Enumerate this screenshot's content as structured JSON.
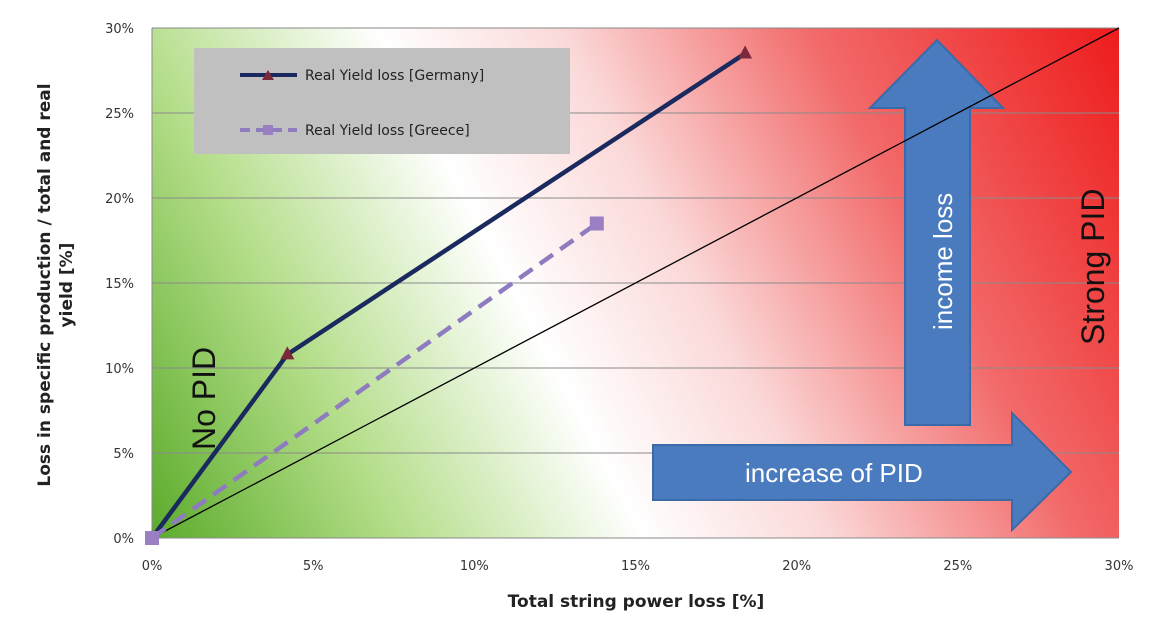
{
  "chart_data": {
    "type": "line",
    "xlabel": "Total string power loss [%]",
    "ylabel": "Loss in specific production / total and real yield [%]",
    "ylabel_lines": [
      "Loss in specific production / total and real",
      "yield [%]"
    ],
    "xlim": [
      0,
      30
    ],
    "ylim": [
      0,
      30
    ],
    "x_ticks": [
      0,
      5,
      10,
      15,
      20,
      25,
      30
    ],
    "y_ticks": [
      0,
      5,
      10,
      15,
      20,
      25,
      30
    ],
    "x_tick_labels": [
      "0%",
      "5%",
      "10%",
      "15%",
      "20%",
      "25%",
      "30%"
    ],
    "y_tick_labels": [
      "0%",
      "5%",
      "10%",
      "15%",
      "20%",
      "25%",
      "30%"
    ],
    "grid": "horizontal",
    "legend_position": "top-left",
    "series": [
      {
        "name": "Real Yield loss [Germany]",
        "style": "solid",
        "marker": "triangle",
        "color": "#1b2a5e",
        "marker_color": "#7a2a3a",
        "points": [
          [
            0,
            0
          ],
          [
            4.2,
            10.8
          ],
          [
            18.4,
            28.5
          ]
        ]
      },
      {
        "name": "Real Yield loss [Greece]",
        "style": "dashed",
        "marker": "square",
        "color": "#8f7bc0",
        "marker_color": "#9b7fc5",
        "points": [
          [
            0,
            0
          ],
          [
            13.8,
            18.5
          ]
        ]
      }
    ],
    "reference_line": {
      "points": [
        [
          0,
          0
        ],
        [
          30,
          30
        ]
      ],
      "color": "#000000"
    },
    "annotations": {
      "no_pid": "No PID",
      "strong_pid": "Strong PID",
      "income_loss": "income loss",
      "increase_pid": "increase of PID"
    },
    "colors": {
      "region_green": "#6cbf3a",
      "region_red": "#ee1c1c",
      "arrow_fill": "#4a7bbf",
      "arrow_stroke": "#3a6aa8",
      "legend_bg": "#c0c0c0"
    }
  }
}
